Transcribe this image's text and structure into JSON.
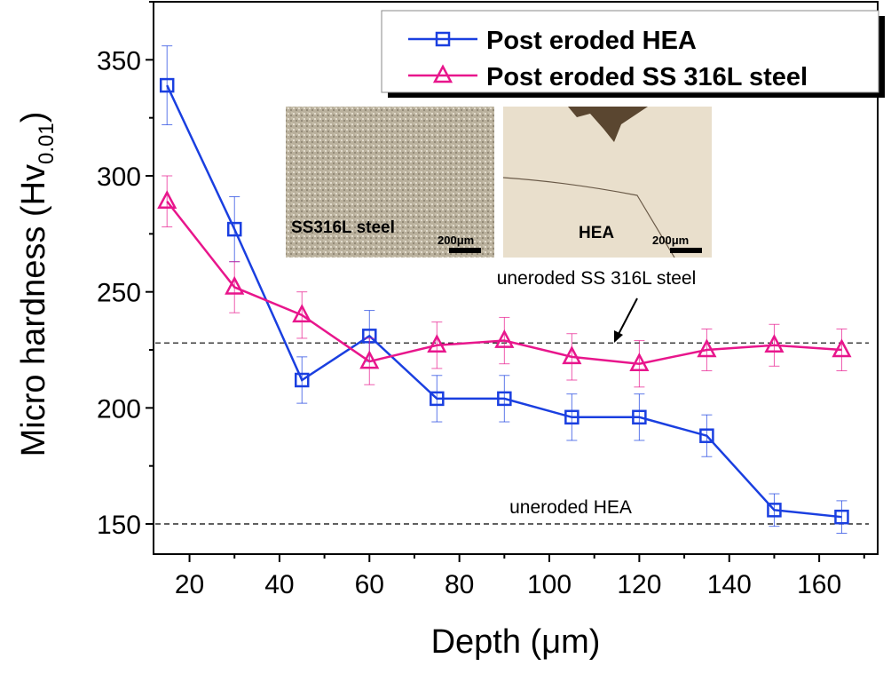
{
  "chart_data": {
    "type": "line",
    "xlabel": "Depth (μm)",
    "ylabel_main": "Micro hardness (Hv",
    "ylabel_sub": "0.01",
    "ylabel_close": ")",
    "xlim": [
      12,
      173
    ],
    "ylim": [
      137,
      375
    ],
    "xticks": [
      20,
      40,
      60,
      80,
      100,
      120,
      140,
      160
    ],
    "yticks": [
      150,
      200,
      250,
      300,
      350
    ],
    "grid": false,
    "legend_position": "top-right",
    "x": [
      15,
      30,
      45,
      60,
      75,
      90,
      105,
      120,
      135,
      150,
      165
    ],
    "series": [
      {
        "name": "Post eroded HEA",
        "color": "#1a3fe0",
        "marker": "square",
        "values": [
          339,
          277,
          212,
          231,
          204,
          204,
          196,
          196,
          188,
          156,
          153
        ],
        "errors": [
          17,
          14,
          10,
          11,
          10,
          10,
          10,
          10,
          9,
          7,
          7
        ]
      },
      {
        "name": "Post eroded SS 316L steel",
        "color": "#e8168c",
        "marker": "triangle",
        "values": [
          289,
          252,
          240,
          220,
          227,
          229,
          222,
          219,
          225,
          227,
          225
        ],
        "errors": [
          11,
          11,
          10,
          10,
          10,
          10,
          10,
          10,
          9,
          9,
          9
        ]
      }
    ],
    "reference_lines": [
      {
        "label": "uneroded SS 316L steel",
        "value": 228
      },
      {
        "label": "uneroded HEA",
        "value": 150
      }
    ],
    "insets": [
      {
        "label": "SS316L steel",
        "scale_bar": "200μm"
      },
      {
        "label": "HEA",
        "scale_bar": "200μm"
      }
    ]
  }
}
